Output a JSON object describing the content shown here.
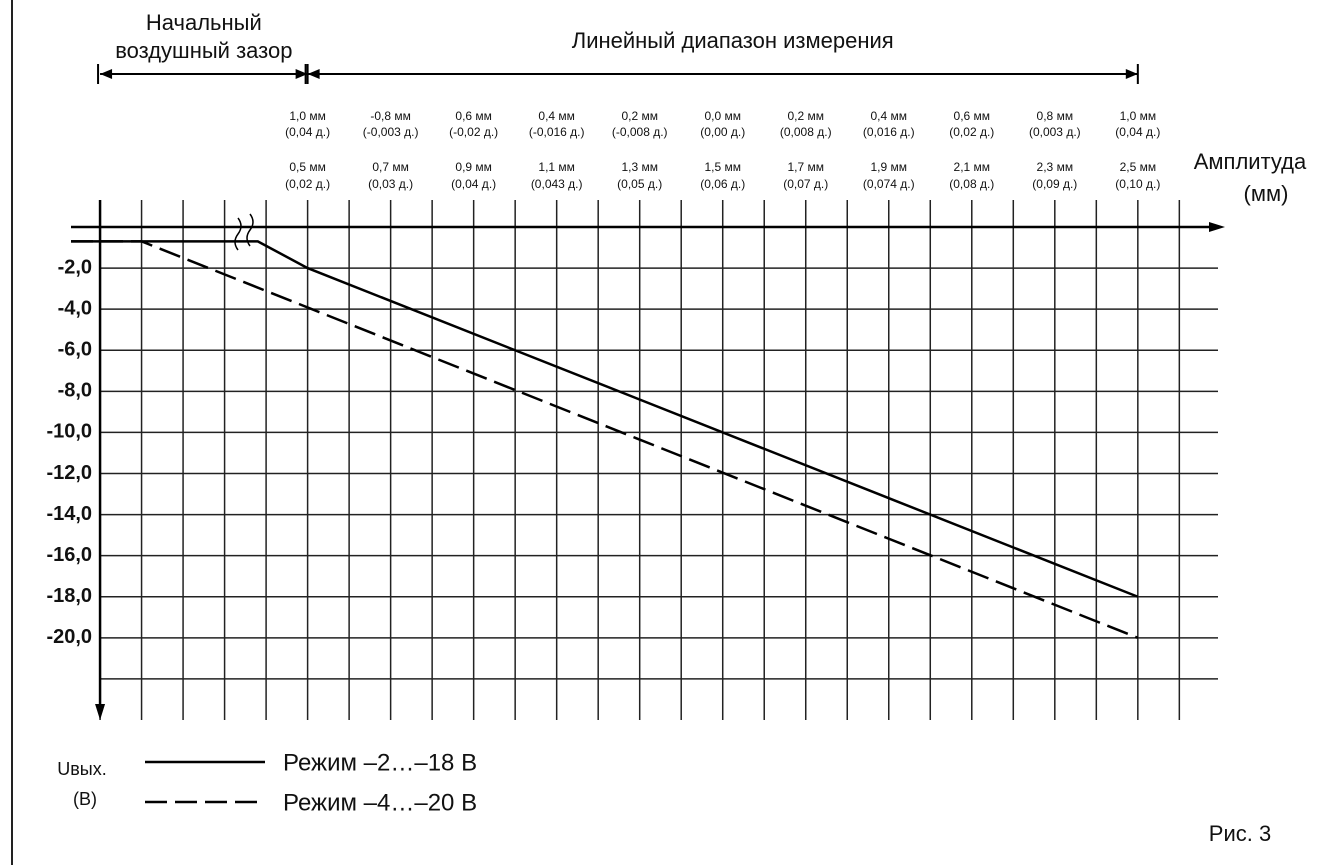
{
  "chart_data": {
    "type": "line",
    "ranges": [
      {
        "label": [
          "Начальный",
          "воздушный зазор"
        ],
        "from": 0,
        "to": 0.5
      },
      {
        "label": [
          "Линейный диапазон измерения"
        ],
        "from": 0.5,
        "to": 2.5
      }
    ],
    "xlabel": [
      "Амплитуда",
      "(мм)"
    ],
    "ylabel": [
      "Uвых.",
      "(В)"
    ],
    "annotation": "Рис. 3",
    "xlim": [
      -0.07,
      2.71
    ],
    "ylim": [
      0,
      -24
    ],
    "xticks": [
      0,
      0.1,
      0.2,
      0.3,
      0.4,
      0.5,
      0.6,
      0.7,
      0.8,
      0.9,
      1.0,
      1.1,
      1.2,
      1.3,
      1.4,
      1.5,
      1.6,
      1.7,
      1.8,
      1.9,
      2.0,
      2.1,
      2.2,
      2.3,
      2.4,
      2.5,
      2.6
    ],
    "xtick_labels": [
      {
        "value": 0.5,
        "label": "0,5 мм",
        "sublabel": "(0,02 д.)",
        "top": "1,0 мм",
        "topsub": "(0,04 д.)"
      },
      {
        "value": 0.7,
        "label": "0,7 мм",
        "sublabel": "(0,03 д.)",
        "top": "-0,8 мм",
        "topsub": "(-0,003 д.)"
      },
      {
        "value": 0.9,
        "label": "0,9 мм",
        "sublabel": "(0,04 д.)",
        "top": "0,6 мм",
        "topsub": "(-0,02 д.)"
      },
      {
        "value": 1.1,
        "label": "1,1 мм",
        "sublabel": "(0,043 д.)",
        "top": "0,4 мм",
        "topsub": "(-0,016 д.)"
      },
      {
        "value": 1.3,
        "label": "1,3 мм",
        "sublabel": "(0,05 д.)",
        "top": "0,2 мм",
        "topsub": "(-0,008 д.)"
      },
      {
        "value": 1.5,
        "label": "1,5 мм",
        "sublabel": "(0,06 д.)",
        "top": "0,0 мм",
        "topsub": "(0,00 д.)"
      },
      {
        "value": 1.7,
        "label": "1,7 мм",
        "sublabel": "(0,07 д.)",
        "top": "0,2 мм",
        "topsub": "(0,008 д.)"
      },
      {
        "value": 1.9,
        "label": "1,9 мм",
        "sublabel": "(0,074 д.)",
        "top": "0,4 мм",
        "topsub": "(0,016 д.)"
      },
      {
        "value": 2.1,
        "label": "2,1 мм",
        "sublabel": "(0,08 д.)",
        "top": "0,6 мм",
        "topsub": "(0,02 д.)"
      },
      {
        "value": 2.3,
        "label": "2,3 мм",
        "sublabel": "(0,09 д.)",
        "top": "0,8 мм",
        "topsub": "(0,003 д.)"
      },
      {
        "value": 2.5,
        "label": "2,5 мм",
        "sublabel": "(0,10 д.)",
        "top": "1,0 мм",
        "topsub": "(0,04 д.)"
      }
    ],
    "ygrid": [
      -2,
      -4,
      -6,
      -8,
      -10,
      -12,
      -14,
      -16,
      -18,
      -20,
      -22
    ],
    "yticks": [
      {
        "value": -2,
        "label": "-2,0"
      },
      {
        "value": -4,
        "label": "-4,0"
      },
      {
        "value": -6,
        "label": "-6,0"
      },
      {
        "value": -8,
        "label": "-8,0"
      },
      {
        "value": -10,
        "label": "-10,0"
      },
      {
        "value": -12,
        "label": "-12,0"
      },
      {
        "value": -14,
        "label": "-14,0"
      },
      {
        "value": -16,
        "label": "-16,0"
      },
      {
        "value": -18,
        "label": "-18,0"
      },
      {
        "value": -20,
        "label": "-20,0"
      }
    ],
    "grid": true,
    "series": [
      {
        "name": "Режим –2…–18 В",
        "color": "#000000",
        "dash": false,
        "x": [
          -0.07,
          0.38,
          0.5,
          2.5
        ],
        "values": [
          -0.7,
          -0.7,
          -2,
          -18
        ]
      },
      {
        "name": "Режим –4…–20 В",
        "color": "#000000",
        "dash": true,
        "x": [
          -0.07,
          0.1,
          2.5
        ],
        "values": [
          -0.7,
          -0.7,
          -20
        ]
      }
    ]
  }
}
